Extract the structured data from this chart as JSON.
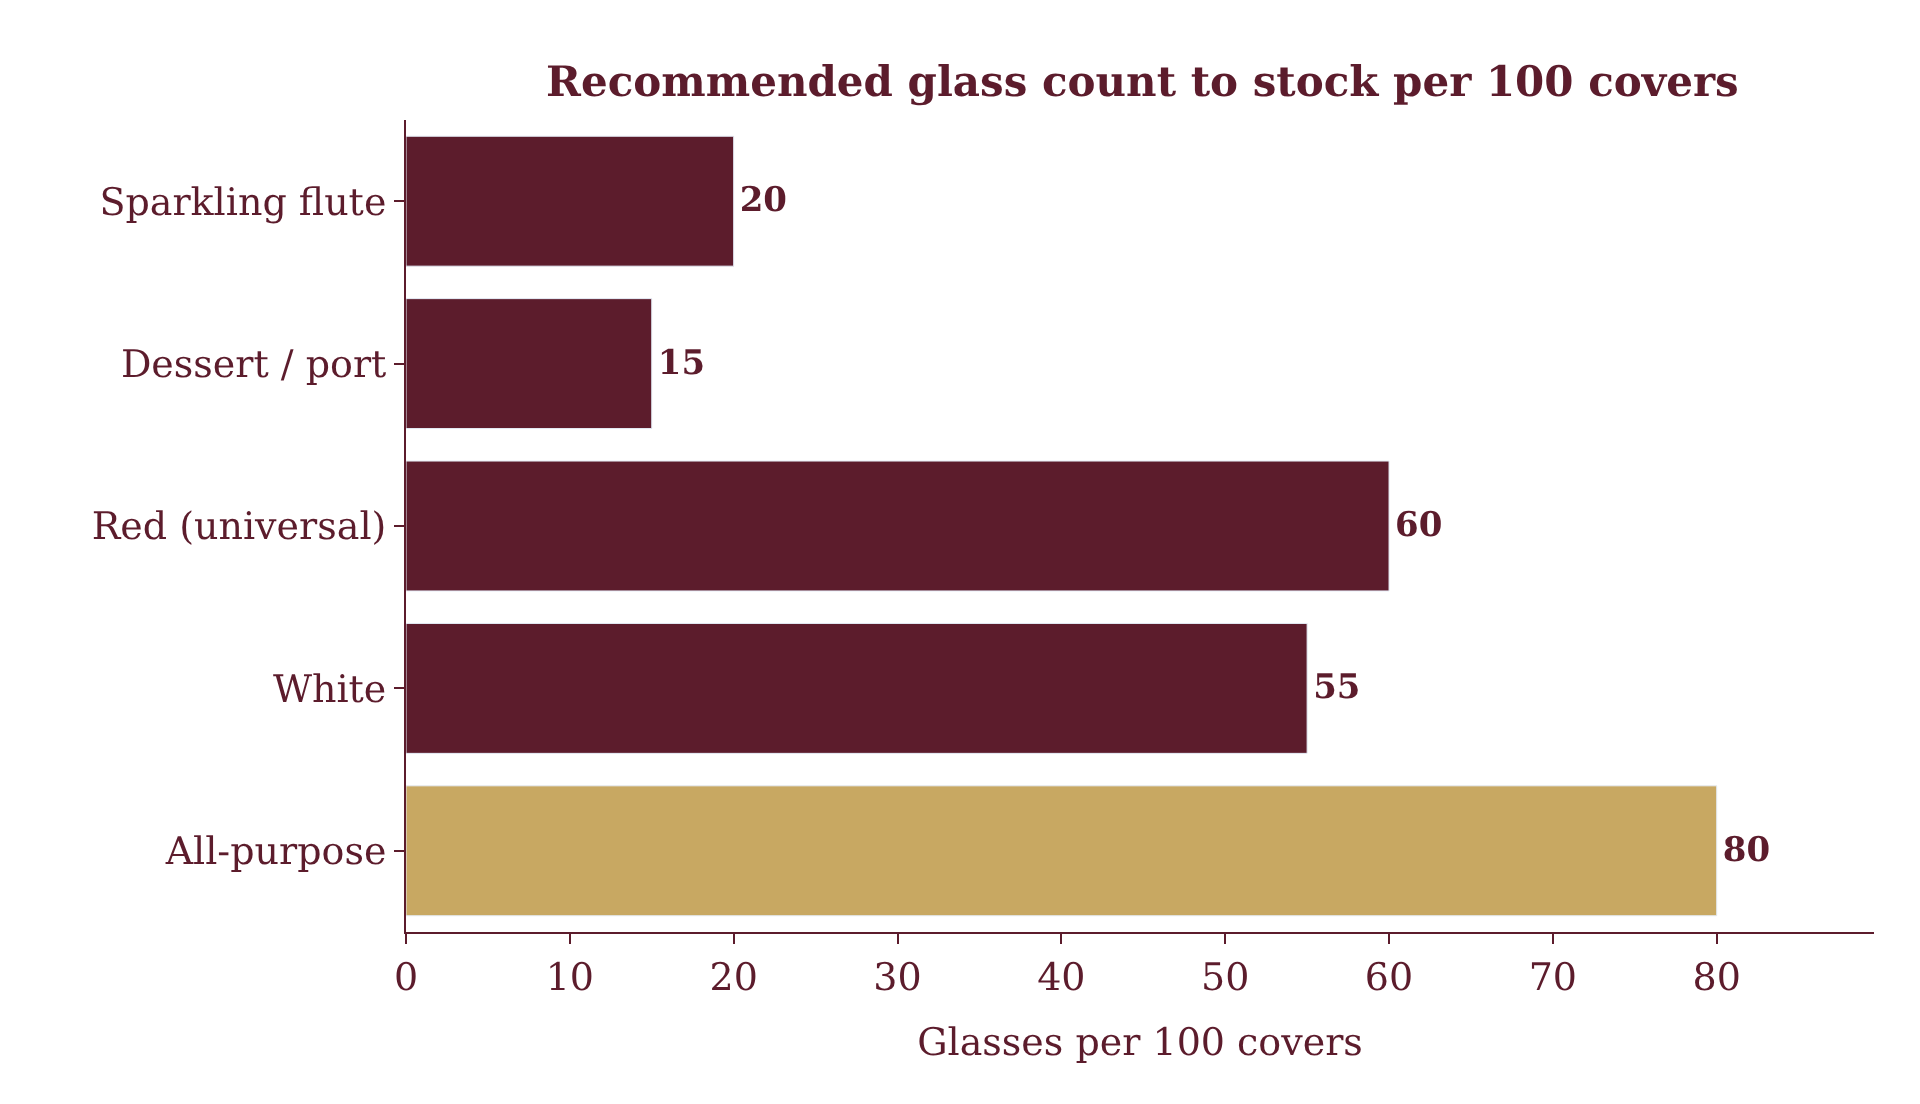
{
  "chart_data": {
    "type": "bar",
    "orientation": "horizontal",
    "title": "Recommended glass count to stock per 100 covers",
    "xlabel": "Glasses per 100 covers",
    "categories": [
      "Sparkling flute",
      "Dessert / port",
      "Red (universal)",
      "White",
      "All-purpose"
    ],
    "values": [
      20,
      15,
      60,
      55,
      80
    ],
    "colors": [
      "#5c1c2c",
      "#5c1c2c",
      "#5c1c2c",
      "#5c1c2c",
      "#c8a862"
    ],
    "xlim": [
      0,
      89.6
    ],
    "xticks": [
      0,
      10,
      20,
      30,
      40,
      50,
      60,
      70,
      80
    ],
    "data_labels": true
  }
}
